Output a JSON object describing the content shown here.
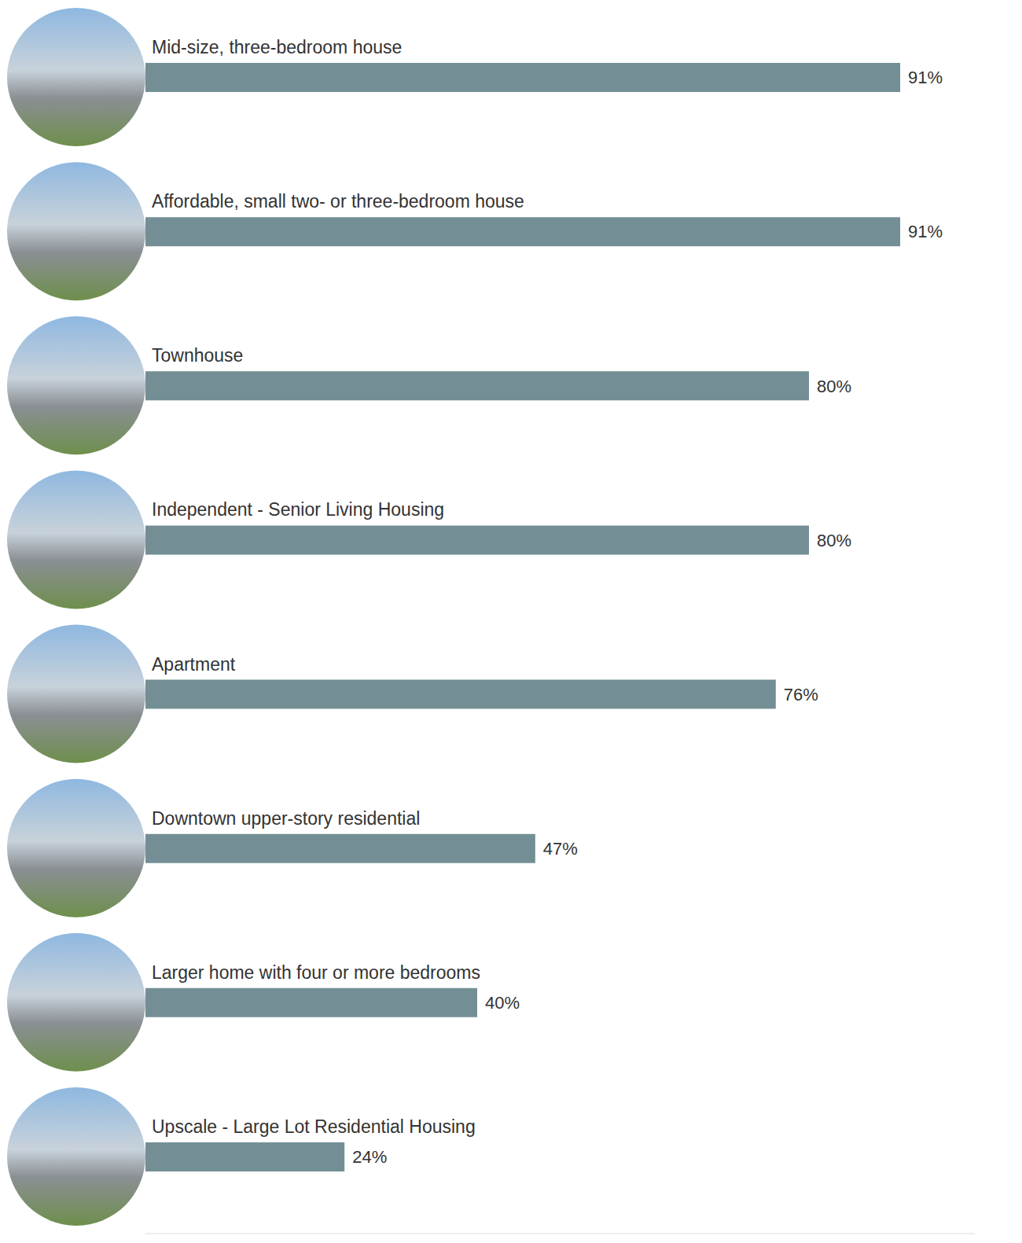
{
  "chart_data": {
    "type": "bar",
    "orientation": "horizontal",
    "categories": [
      "Mid-size, three-bedroom house",
      "Affordable, small two- or three-bedroom house",
      "Townhouse",
      "Independent - Senior Living Housing",
      "Apartment",
      "Downtown upper-story residential",
      "Larger home with four or more bedrooms",
      "Upscale - Large Lot Residential Housing"
    ],
    "values": [
      91,
      91,
      80,
      80,
      76,
      47,
      40,
      24
    ],
    "value_labels": [
      "91%",
      "91%",
      "80%",
      "80%",
      "76%",
      "47%",
      "40%",
      "24%"
    ],
    "color": "#738f95",
    "xlim": [
      0,
      100
    ],
    "tick_labels": false,
    "data_labels": true,
    "grid": false
  }
}
